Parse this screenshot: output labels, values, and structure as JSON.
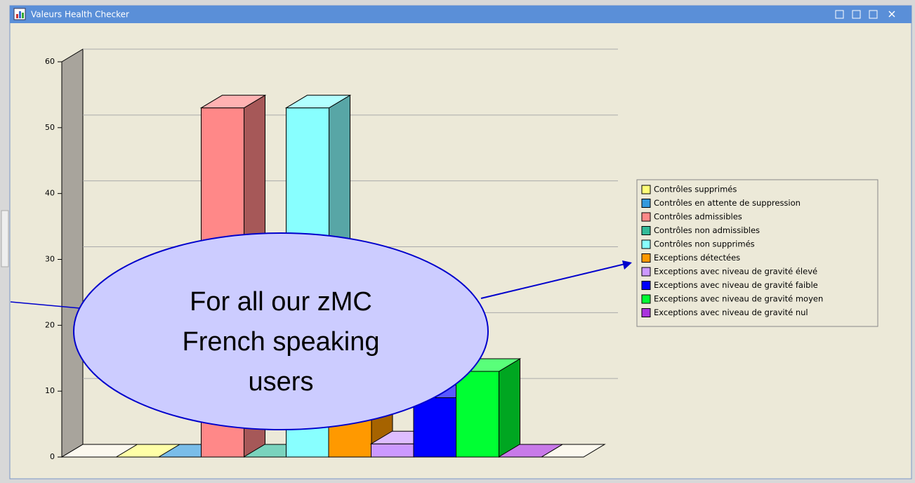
{
  "window": {
    "title": "Valeurs Health Checker"
  },
  "callout": {
    "lines": [
      "For all our zMC",
      "French speaking",
      "users"
    ]
  },
  "chart_data": {
    "type": "bar",
    "categories": [
      "Contrôles supprimés",
      "Contrôles en attente de suppression",
      "Contrôles admissibles",
      "Contrôles non admissibles",
      "Contrôles non supprimés",
      "Exceptions détectées",
      "Exceptions avec niveau de gravité élevé",
      "Exceptions avec niveau de gravité faible",
      "Exceptions avec niveau de gravité moyen",
      "Exceptions avec niveau de gravité nul"
    ],
    "values": [
      0,
      0,
      53,
      0,
      53,
      7,
      2,
      9,
      13,
      0
    ],
    "colors": [
      "#ffff77",
      "#3399dd",
      "#ff8888",
      "#33bb99",
      "#88ffff",
      "#ff9900",
      "#cc99ff",
      "#0000ff",
      "#00ff33",
      "#aa33dd"
    ],
    "ylim": [
      0,
      60
    ],
    "yticks": [
      0,
      10,
      20,
      30,
      40,
      50,
      60
    ],
    "grid": true,
    "legend": "right"
  }
}
